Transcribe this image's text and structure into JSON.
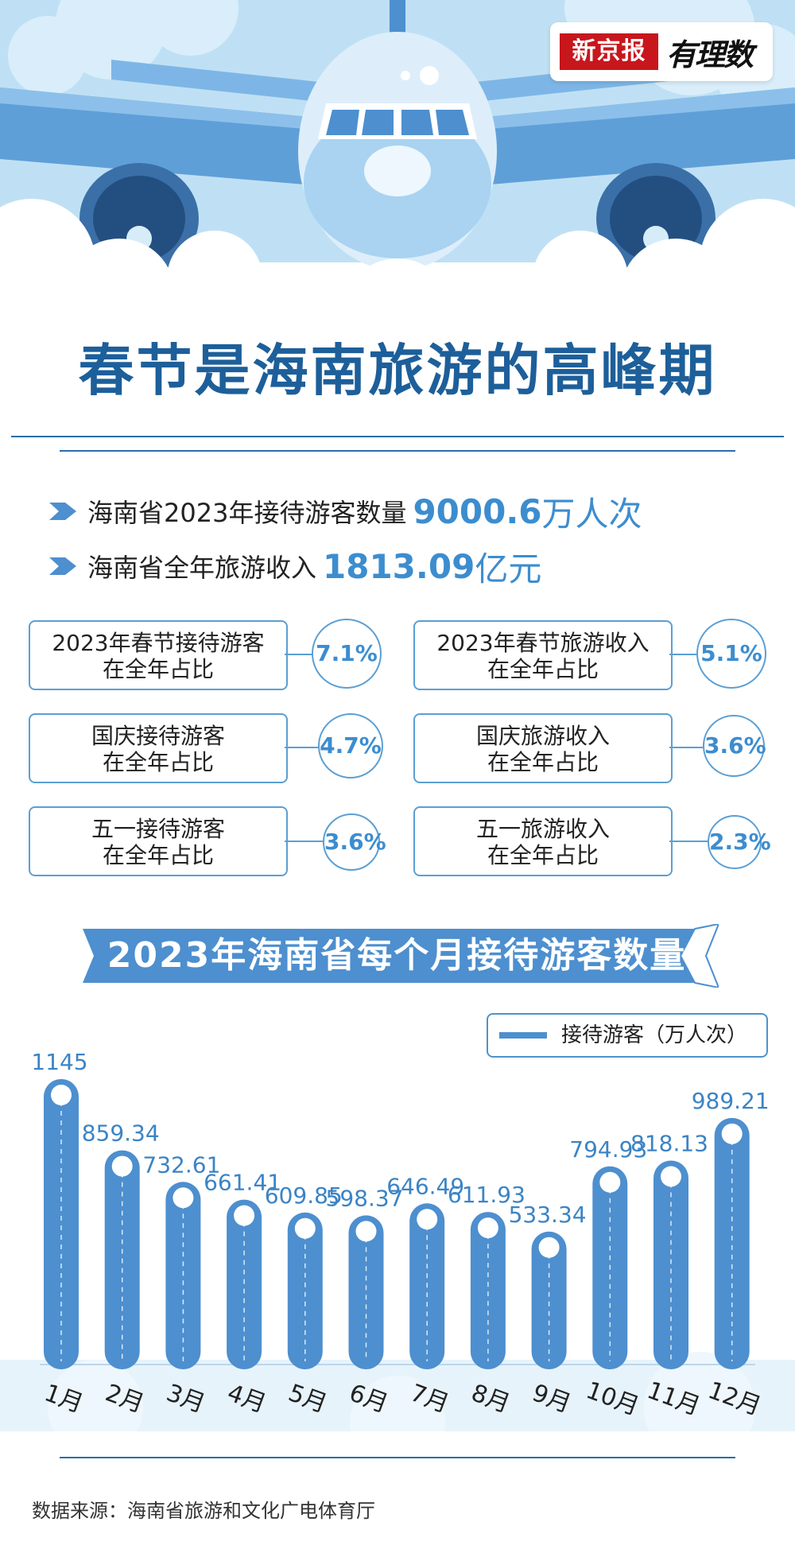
{
  "logo": {
    "news": "新京报",
    "brand": "有理数"
  },
  "title": "春节是海南旅游的高峰期",
  "stats": [
    {
      "label": "海南省2023年接待游客数量",
      "value": "9000.6",
      "unit": "万人次"
    },
    {
      "label": "海南省全年旅游收入",
      "value": "1813.09",
      "unit": "亿元"
    }
  ],
  "cards": [
    {
      "label": "2023年春节接待游客\n在全年占比",
      "value": "7.1%"
    },
    {
      "label": "2023年春节旅游收入\n在全年占比",
      "value": "5.1%"
    },
    {
      "label": "国庆接待游客\n在全年占比",
      "value": "4.7%"
    },
    {
      "label": "国庆旅游收入\n在全年占比",
      "value": "3.6%"
    },
    {
      "label": "五一接待游客\n在全年占比",
      "value": "3.6%"
    },
    {
      "label": "五一旅游收入\n在全年占比",
      "value": "2.3%"
    }
  ],
  "chart_data": {
    "type": "bar",
    "title": "2023年海南省每个月接待游客数量",
    "categories": [
      "1月",
      "2月",
      "3月",
      "4月",
      "5月",
      "6月",
      "7月",
      "8月",
      "9月",
      "10月",
      "11月",
      "12月"
    ],
    "series": [
      {
        "name": "接待游客（万人次）",
        "values": [
          1145,
          859.34,
          732.61,
          661.41,
          609.85,
          598.37,
          646.49,
          611.93,
          533.34,
          794.93,
          818.13,
          989.21
        ]
      }
    ],
    "value_labels": [
      "1145",
      "859.34",
      "732.61",
      "661.41",
      "609.85",
      "598.37",
      "646.49",
      "611.93",
      "533.34",
      "794.93",
      "818.13",
      "989.21"
    ],
    "bar_color": "#4d8fcf",
    "legend": "top-right"
  },
  "source": "数据来源：海南省旅游和文化广电体育厅"
}
